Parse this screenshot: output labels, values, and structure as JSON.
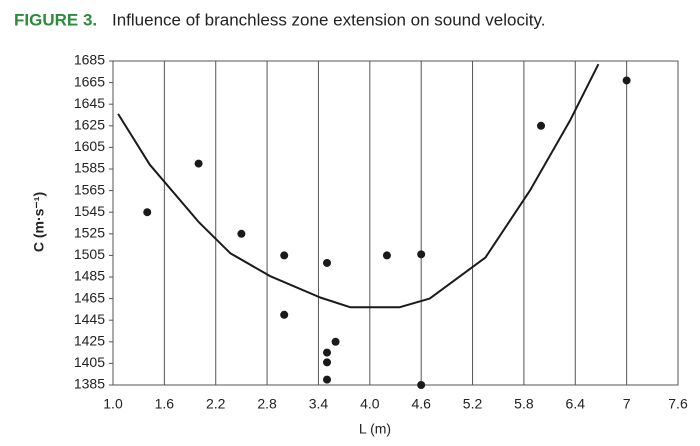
{
  "chart_data": {
    "type": "scatter",
    "figure_label": "FIGURE 3.",
    "title": "Influence of branchless zone extension on sound velocity.",
    "x_label": "L (m)",
    "y_label": "C (m·s⁻¹)",
    "x": [
      1.4,
      2.0,
      2.5,
      3.0,
      3.5,
      4.2,
      4.6,
      6.0,
      7.0,
      3.0,
      3.6,
      3.5,
      3.5,
      3.5,
      4.6
    ],
    "y": [
      1545,
      1590,
      1525,
      1505,
      1498,
      1505,
      1506,
      1625,
      1667,
      1450,
      1425,
      1415,
      1406,
      1390,
      1385
    ],
    "color": "#1a1a1a",
    "curve": {
      "x": [
        1.06,
        1.43,
        2.0,
        2.37,
        2.83,
        3.42,
        3.77,
        4.35,
        4.7,
        5.35,
        5.87,
        6.34,
        6.67
      ],
      "y": [
        1636,
        1589,
        1536,
        1507,
        1486,
        1466,
        1457,
        1457,
        1465,
        1503,
        1565,
        1630,
        1682
      ],
      "color": "#1a1a1a"
    },
    "xlim": [
      1.0,
      7.6
    ],
    "ylim": [
      1385,
      1685
    ],
    "xticks": [
      {
        "value": 1.0,
        "label": "1.0"
      },
      1.6,
      2.2,
      2.8,
      3.4,
      {
        "value": 4.0,
        "label": "4.0"
      },
      4.6,
      5.2,
      5.8,
      6.4,
      7,
      7.6
    ],
    "yticks": [
      1385,
      1405,
      1425,
      1445,
      1465,
      1485,
      1505,
      1525,
      1545,
      1565,
      1585,
      1605,
      1625,
      1645,
      1665,
      1685
    ],
    "grid": "x"
  }
}
